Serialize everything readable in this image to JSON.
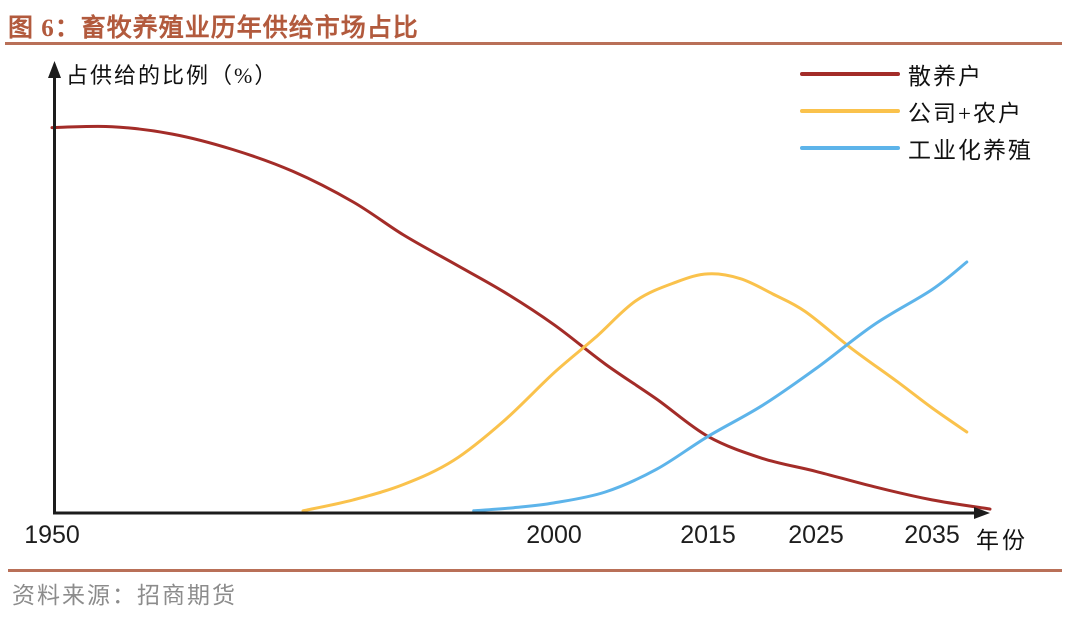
{
  "figure": {
    "title": "图 6：畜牧养殖业历年供给市场占比",
    "source": "资料来源：招商期货"
  },
  "colors": {
    "accent": "#b25a3d",
    "rule": "#b97058",
    "axis": "#1c1c1c",
    "source_text": "#8c8c8c"
  },
  "chart_data": {
    "type": "line",
    "title": "畜牧养殖业历年供给市场占比",
    "ylabel": "占供给的比例（%）",
    "xlabel": "年份",
    "x_tick_labels": [
      "1950",
      "2000",
      "2015",
      "2025",
      "2035"
    ],
    "x_range": [
      1950,
      2040
    ],
    "ylim": [
      0,
      100
    ],
    "grid": false,
    "legend_position": "top-right",
    "series": [
      {
        "name": "散养户",
        "color": "#a32c28",
        "points": [
          [
            1950,
            88
          ],
          [
            1956,
            88.2
          ],
          [
            1962,
            86.5
          ],
          [
            1968,
            83
          ],
          [
            1974,
            78
          ],
          [
            1980,
            71
          ],
          [
            1985,
            63.5
          ],
          [
            1990,
            57
          ],
          [
            1995,
            50.5
          ],
          [
            2000,
            43
          ],
          [
            2005,
            34
          ],
          [
            2010,
            26
          ],
          [
            2015,
            17.5
          ],
          [
            2020,
            12.5
          ],
          [
            2025,
            9.5
          ],
          [
            2030,
            6
          ],
          [
            2035,
            3
          ],
          [
            2040,
            0.9
          ]
        ]
      },
      {
        "name": "公司+农户",
        "color": "#fac24c",
        "points": [
          [
            1975,
            0.5
          ],
          [
            1980,
            3
          ],
          [
            1985,
            6.5
          ],
          [
            1990,
            12
          ],
          [
            1995,
            21
          ],
          [
            2000,
            32
          ],
          [
            2004,
            40
          ],
          [
            2008,
            48.5
          ],
          [
            2012,
            52.8
          ],
          [
            2015,
            54.6
          ],
          [
            2018,
            53.5
          ],
          [
            2021,
            50
          ],
          [
            2024,
            46
          ],
          [
            2028,
            37.7
          ],
          [
            2032,
            30
          ],
          [
            2035,
            24
          ],
          [
            2038,
            18.5
          ]
        ]
      },
      {
        "name": "工业化养殖",
        "color": "#5db4ea",
        "points": [
          [
            1992,
            0.5
          ],
          [
            1996,
            1.2
          ],
          [
            2000,
            2.3
          ],
          [
            2005,
            4.8
          ],
          [
            2010,
            10
          ],
          [
            2015,
            17.5
          ],
          [
            2020,
            24.5
          ],
          [
            2025,
            33
          ],
          [
            2030,
            43
          ],
          [
            2035,
            51
          ],
          [
            2038,
            57.3
          ]
        ]
      }
    ]
  }
}
